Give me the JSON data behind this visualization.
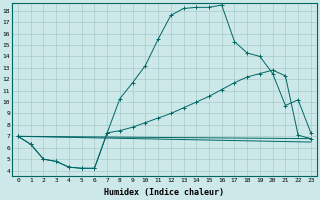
{
  "bg_color": "#cce8e8",
  "grid_color": "#aacccc",
  "line_color": "#006666",
  "xlabel": "Humidex (Indice chaleur)",
  "xlim": [
    -0.5,
    23.5
  ],
  "ylim": [
    3.5,
    18.7
  ],
  "yticks": [
    4,
    5,
    6,
    7,
    8,
    9,
    10,
    11,
    12,
    13,
    14,
    15,
    16,
    17,
    18
  ],
  "xticks": [
    0,
    1,
    2,
    3,
    4,
    5,
    6,
    7,
    8,
    9,
    10,
    11,
    12,
    13,
    14,
    15,
    16,
    17,
    18,
    19,
    20,
    21,
    22,
    23
  ],
  "curve1_x": [
    0,
    1,
    2,
    3,
    4,
    5,
    6,
    7,
    8,
    9,
    10,
    11,
    12,
    13,
    14,
    15,
    16,
    17,
    18,
    19,
    20,
    21,
    22,
    23
  ],
  "curve1_y": [
    7.0,
    6.3,
    5.0,
    4.8,
    4.3,
    4.2,
    4.2,
    7.3,
    10.3,
    11.7,
    13.2,
    15.5,
    17.6,
    18.2,
    18.3,
    18.3,
    18.5,
    15.3,
    14.3,
    14.0,
    12.5,
    9.7,
    10.2,
    7.3
  ],
  "curve2_x": [
    0,
    1,
    2,
    3,
    4,
    5,
    6,
    7,
    8,
    9,
    10,
    11,
    12,
    13,
    14,
    15,
    16,
    17,
    18,
    19,
    20,
    21,
    22,
    23
  ],
  "curve2_y": [
    7.0,
    6.3,
    5.0,
    4.8,
    4.3,
    4.2,
    4.2,
    7.3,
    7.5,
    7.8,
    8.2,
    8.6,
    9.0,
    9.5,
    10.0,
    10.5,
    11.1,
    11.7,
    12.2,
    12.5,
    12.8,
    12.3,
    7.1,
    6.8
  ],
  "line1_x": [
    0,
    23
  ],
  "line1_y": [
    7.0,
    6.8
  ],
  "line2_x": [
    0,
    23
  ],
  "line2_y": [
    7.0,
    6.5
  ]
}
